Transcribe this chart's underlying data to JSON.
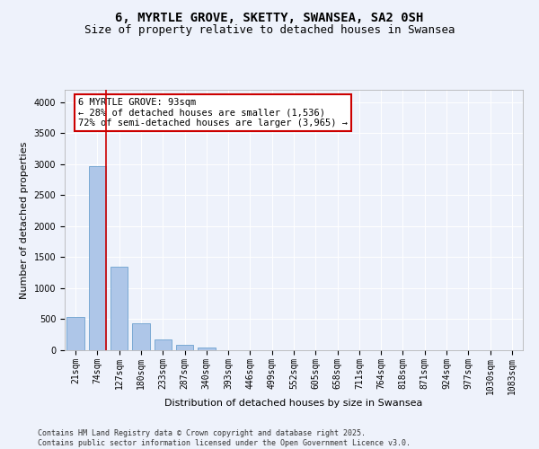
{
  "title": "6, MYRTLE GROVE, SKETTY, SWANSEA, SA2 0SH",
  "subtitle": "Size of property relative to detached houses in Swansea",
  "xlabel": "Distribution of detached houses by size in Swansea",
  "ylabel": "Number of detached properties",
  "categories": [
    "21sqm",
    "74sqm",
    "127sqm",
    "180sqm",
    "233sqm",
    "287sqm",
    "340sqm",
    "393sqm",
    "446sqm",
    "499sqm",
    "552sqm",
    "605sqm",
    "658sqm",
    "711sqm",
    "764sqm",
    "818sqm",
    "871sqm",
    "924sqm",
    "977sqm",
    "1030sqm",
    "1083sqm"
  ],
  "values": [
    530,
    2970,
    1350,
    430,
    175,
    80,
    50,
    0,
    0,
    0,
    0,
    0,
    0,
    0,
    0,
    0,
    0,
    0,
    0,
    0,
    0
  ],
  "bar_color": "#aec6e8",
  "bar_edge_color": "#5a96c8",
  "vline_color": "#cc0000",
  "vline_x_index": 1,
  "annotation_text": "6 MYRTLE GROVE: 93sqm\n← 28% of detached houses are smaller (1,536)\n72% of semi-detached houses are larger (3,965) →",
  "annotation_box_color": "#cc0000",
  "annotation_bg": "#ffffff",
  "ylim": [
    0,
    4200
  ],
  "yticks": [
    0,
    500,
    1000,
    1500,
    2000,
    2500,
    3000,
    3500,
    4000
  ],
  "footer_line1": "Contains HM Land Registry data © Crown copyright and database right 2025.",
  "footer_line2": "Contains public sector information licensed under the Open Government Licence v3.0.",
  "title_fontsize": 10,
  "subtitle_fontsize": 9,
  "axis_label_fontsize": 8,
  "tick_fontsize": 7,
  "annotation_fontsize": 7.5,
  "footer_fontsize": 6,
  "background_color": "#eef2fb",
  "plot_background": "#eef2fb"
}
